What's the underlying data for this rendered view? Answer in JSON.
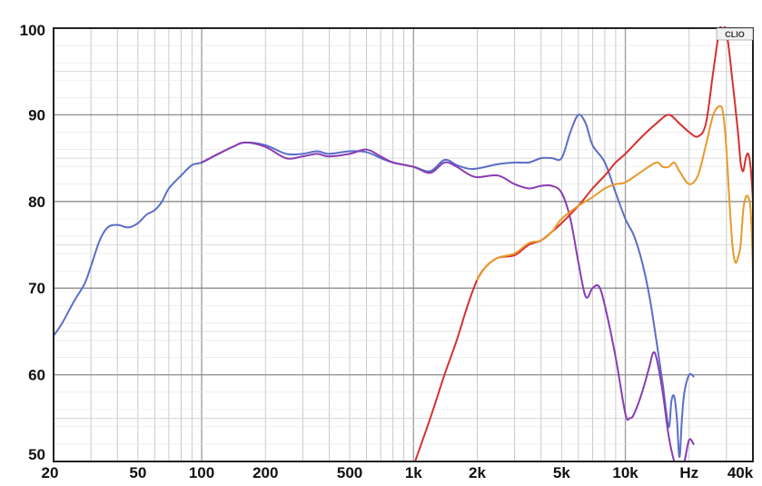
{
  "chart_data": {
    "type": "line",
    "title": "",
    "xlabel": "",
    "ylabel": "",
    "x_scale": "log",
    "xlim": [
      20,
      40000
    ],
    "ylim": [
      50,
      100
    ],
    "grid": true,
    "badge": "CLIO",
    "x_tick_labels": [
      {
        "value": 20,
        "label": "20"
      },
      {
        "value": 50,
        "label": "50"
      },
      {
        "value": 100,
        "label": "100"
      },
      {
        "value": 200,
        "label": "200"
      },
      {
        "value": 500,
        "label": "500"
      },
      {
        "value": 1000,
        "label": "1k"
      },
      {
        "value": 2000,
        "label": "2k"
      },
      {
        "value": 5000,
        "label": "5k"
      },
      {
        "value": 10000,
        "label": "10k"
      },
      {
        "value": 20000,
        "label": "Hz"
      },
      {
        "value": 40000,
        "label": "40k"
      }
    ],
    "y_tick_labels": [
      {
        "value": 100,
        "label": "100"
      },
      {
        "value": 90,
        "label": "90"
      },
      {
        "value": 80,
        "label": "80"
      },
      {
        "value": 70,
        "label": "70"
      },
      {
        "value": 60,
        "label": "60"
      },
      {
        "value": 50,
        "label": "50"
      }
    ],
    "series": [
      {
        "color": "#5a6ec8",
        "points": [
          [
            20,
            64.5
          ],
          [
            22,
            66
          ],
          [
            25,
            68.5
          ],
          [
            28,
            70.5
          ],
          [
            30,
            72.5
          ],
          [
            33,
            75.5
          ],
          [
            36,
            77
          ],
          [
            40,
            77.3
          ],
          [
            45,
            77
          ],
          [
            50,
            77.5
          ],
          [
            55,
            78.5
          ],
          [
            60,
            79
          ],
          [
            65,
            80
          ],
          [
            70,
            81.5
          ],
          [
            80,
            83
          ],
          [
            90,
            84.2
          ],
          [
            100,
            84.5
          ],
          [
            120,
            85.5
          ],
          [
            140,
            86.3
          ],
          [
            160,
            86.8
          ],
          [
            200,
            86.5
          ],
          [
            250,
            85.5
          ],
          [
            300,
            85.5
          ],
          [
            350,
            85.8
          ],
          [
            400,
            85.5
          ],
          [
            500,
            85.8
          ],
          [
            600,
            85.7
          ],
          [
            700,
            85
          ],
          [
            800,
            84.5
          ],
          [
            1000,
            84
          ],
          [
            1200,
            83.5
          ],
          [
            1400,
            84.8
          ],
          [
            1600,
            84.2
          ],
          [
            1800,
            83.8
          ],
          [
            2000,
            83.8
          ],
          [
            2500,
            84.3
          ],
          [
            3000,
            84.5
          ],
          [
            3500,
            84.5
          ],
          [
            4000,
            85
          ],
          [
            4500,
            85
          ],
          [
            5000,
            85
          ],
          [
            5500,
            88
          ],
          [
            6000,
            90
          ],
          [
            6500,
            89
          ],
          [
            7000,
            86.5
          ],
          [
            8000,
            84.5
          ],
          [
            9000,
            81
          ],
          [
            10000,
            78
          ],
          [
            11000,
            76
          ],
          [
            12000,
            73
          ],
          [
            13000,
            69
          ],
          [
            14000,
            64
          ],
          [
            15000,
            59
          ],
          [
            16000,
            54
          ],
          [
            16500,
            57
          ],
          [
            17000,
            57.5
          ],
          [
            17500,
            55
          ],
          [
            18000,
            50.5
          ],
          [
            18500,
            55
          ],
          [
            19000,
            58
          ],
          [
            20000,
            60
          ],
          [
            21000,
            59.8
          ]
        ]
      },
      {
        "color": "#8a3cb4",
        "points": [
          [
            100,
            84.5
          ],
          [
            120,
            85.5
          ],
          [
            140,
            86.3
          ],
          [
            160,
            86.8
          ],
          [
            200,
            86.3
          ],
          [
            250,
            85
          ],
          [
            300,
            85.2
          ],
          [
            350,
            85.5
          ],
          [
            400,
            85.2
          ],
          [
            500,
            85.5
          ],
          [
            600,
            86
          ],
          [
            700,
            85.2
          ],
          [
            800,
            84.5
          ],
          [
            1000,
            84
          ],
          [
            1200,
            83.3
          ],
          [
            1400,
            84.5
          ],
          [
            1600,
            84
          ],
          [
            1800,
            83.2
          ],
          [
            2000,
            82.8
          ],
          [
            2500,
            83
          ],
          [
            3000,
            82
          ],
          [
            3500,
            81.5
          ],
          [
            4000,
            81.8
          ],
          [
            4500,
            81.8
          ],
          [
            5000,
            81
          ],
          [
            5500,
            78
          ],
          [
            6000,
            73
          ],
          [
            6500,
            69
          ],
          [
            7000,
            70
          ],
          [
            7500,
            70.2
          ],
          [
            8000,
            68
          ],
          [
            9000,
            62
          ],
          [
            10000,
            55.5
          ],
          [
            10500,
            55
          ],
          [
            11000,
            55.5
          ],
          [
            12000,
            58
          ],
          [
            13000,
            61
          ],
          [
            13500,
            62.5
          ],
          [
            14000,
            62
          ],
          [
            15000,
            58
          ],
          [
            16000,
            53
          ],
          [
            17000,
            50
          ],
          [
            18000,
            48.5
          ],
          [
            19000,
            50
          ],
          [
            20000,
            52.5
          ],
          [
            21000,
            52
          ]
        ]
      },
      {
        "color": "#d83030",
        "points": [
          [
            1000,
            49.5
          ],
          [
            1200,
            55
          ],
          [
            1400,
            60
          ],
          [
            1600,
            64
          ],
          [
            1800,
            68
          ],
          [
            2000,
            71
          ],
          [
            2200,
            72.5
          ],
          [
            2500,
            73.5
          ],
          [
            3000,
            73.8
          ],
          [
            3500,
            75
          ],
          [
            4000,
            75.5
          ],
          [
            4500,
            76.5
          ],
          [
            5000,
            77.5
          ],
          [
            6000,
            79.5
          ],
          [
            7000,
            81.5
          ],
          [
            8000,
            83
          ],
          [
            9000,
            84.5
          ],
          [
            10000,
            85.5
          ],
          [
            12000,
            87.5
          ],
          [
            14000,
            89
          ],
          [
            16000,
            90
          ],
          [
            18000,
            89
          ],
          [
            20000,
            88
          ],
          [
            22000,
            87.5
          ],
          [
            24000,
            89
          ],
          [
            26000,
            95
          ],
          [
            28000,
            100
          ],
          [
            30000,
            99.5
          ],
          [
            32000,
            94
          ],
          [
            34000,
            88
          ],
          [
            35000,
            84.5
          ],
          [
            36000,
            83.5
          ],
          [
            37000,
            85
          ],
          [
            38000,
            85.5
          ],
          [
            39000,
            84
          ],
          [
            40000,
            80
          ],
          [
            40500,
            76
          ]
        ]
      },
      {
        "color": "#e89a2c",
        "points": [
          [
            2000,
            71
          ],
          [
            2200,
            72.5
          ],
          [
            2500,
            73.5
          ],
          [
            3000,
            74
          ],
          [
            3500,
            75.2
          ],
          [
            4000,
            75.5
          ],
          [
            4500,
            76.5
          ],
          [
            5000,
            78
          ],
          [
            6000,
            79.5
          ],
          [
            7000,
            80.5
          ],
          [
            8000,
            81.5
          ],
          [
            9000,
            82
          ],
          [
            10000,
            82.2
          ],
          [
            12000,
            83.5
          ],
          [
            14000,
            84.5
          ],
          [
            15000,
            84
          ],
          [
            16000,
            84
          ],
          [
            17000,
            84.5
          ],
          [
            18000,
            83.5
          ],
          [
            20000,
            82
          ],
          [
            22000,
            83
          ],
          [
            24000,
            86.5
          ],
          [
            26000,
            90
          ],
          [
            28000,
            91
          ],
          [
            29000,
            90
          ],
          [
            30000,
            86
          ],
          [
            31000,
            80
          ],
          [
            32000,
            75
          ],
          [
            33000,
            73
          ],
          [
            34000,
            73.5
          ],
          [
            35000,
            75
          ],
          [
            36000,
            79
          ],
          [
            37000,
            80.5
          ],
          [
            38000,
            80.5
          ],
          [
            39000,
            79
          ],
          [
            40000,
            72
          ],
          [
            40500,
            64
          ]
        ]
      }
    ]
  }
}
